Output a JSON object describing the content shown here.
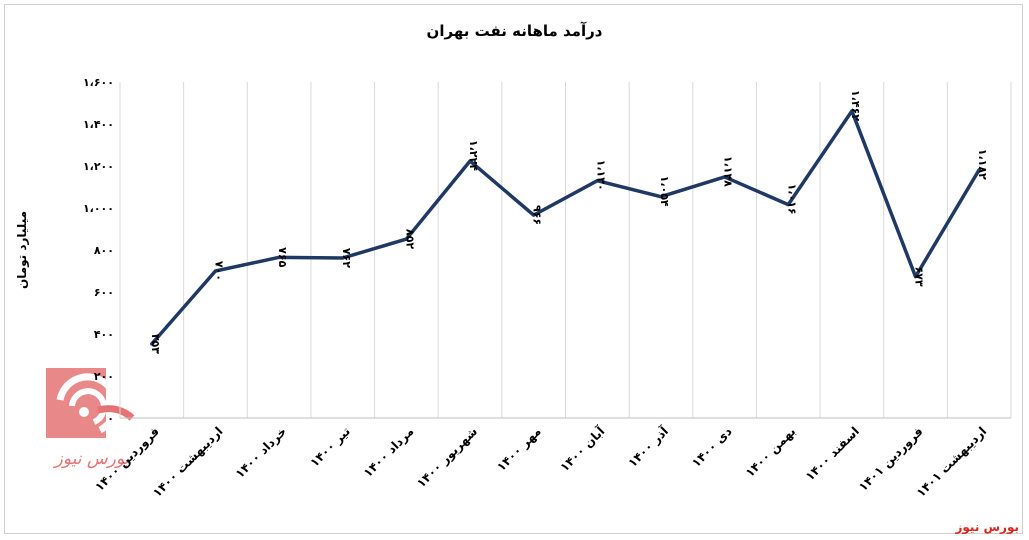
{
  "chart_data": {
    "type": "line",
    "title": "درآمد ماهانه نفت بهران",
    "ylabel": "میلیارد تومان",
    "xlabel": "",
    "ylim": [
      0,
      1600
    ],
    "yticks": [
      0,
      200,
      400,
      600,
      800,
      1000,
      1200,
      1400,
      1600
    ],
    "ytick_labels": [
      "۰",
      "۲۰۰",
      "۴۰۰",
      "۶۰۰",
      "۸۰۰",
      "۱،۰۰۰",
      "۱،۲۰۰",
      "۱،۴۰۰",
      "۱،۶۰۰"
    ],
    "grid": "vertical",
    "categories": [
      "فروردین ۱۴۰۰",
      "اردیبهشت ۱۴۰۰",
      "خرداد ۱۴۰۰",
      "تیر ۱۴۰۰",
      "مرداد ۱۴۰۰",
      "شهریور ۱۴۰۰",
      "مهر ۱۴۰۰",
      "آبان ۱۴۰۰",
      "آذر ۱۴۰۰",
      "دی ۱۴۰۰",
      "بهمن ۱۴۰۰",
      "اسفند ۱۴۰۰",
      "فروردین ۱۴۰۱",
      "اردیبهشت ۱۴۰۱"
    ],
    "values": [
      353,
      700,
      765,
      762,
      852,
      1224,
      966,
      1130,
      1054,
      1148,
      1016,
      1462,
      673,
      1182
    ],
    "value_labels": [
      "۳۵۳",
      "۷۰۰",
      "۷۶۵",
      "۷۶۲",
      "۸۵۲",
      "۱،۲۲۴",
      "۹۶۶",
      "۱،۱۳۰",
      "۱،۰۵۴",
      "۱،۱۴۸",
      "۱،۰۱۶",
      "۱،۴۶۲",
      "۶۷۳",
      "۱،۱۸۲"
    ],
    "line_color": "#1f3864"
  },
  "source": "بورس نیوز",
  "logo_text": "بورس نیوز",
  "colors": {
    "accent": "#d9261c",
    "line": "#1f3864",
    "grid": "#d9d9d9"
  }
}
